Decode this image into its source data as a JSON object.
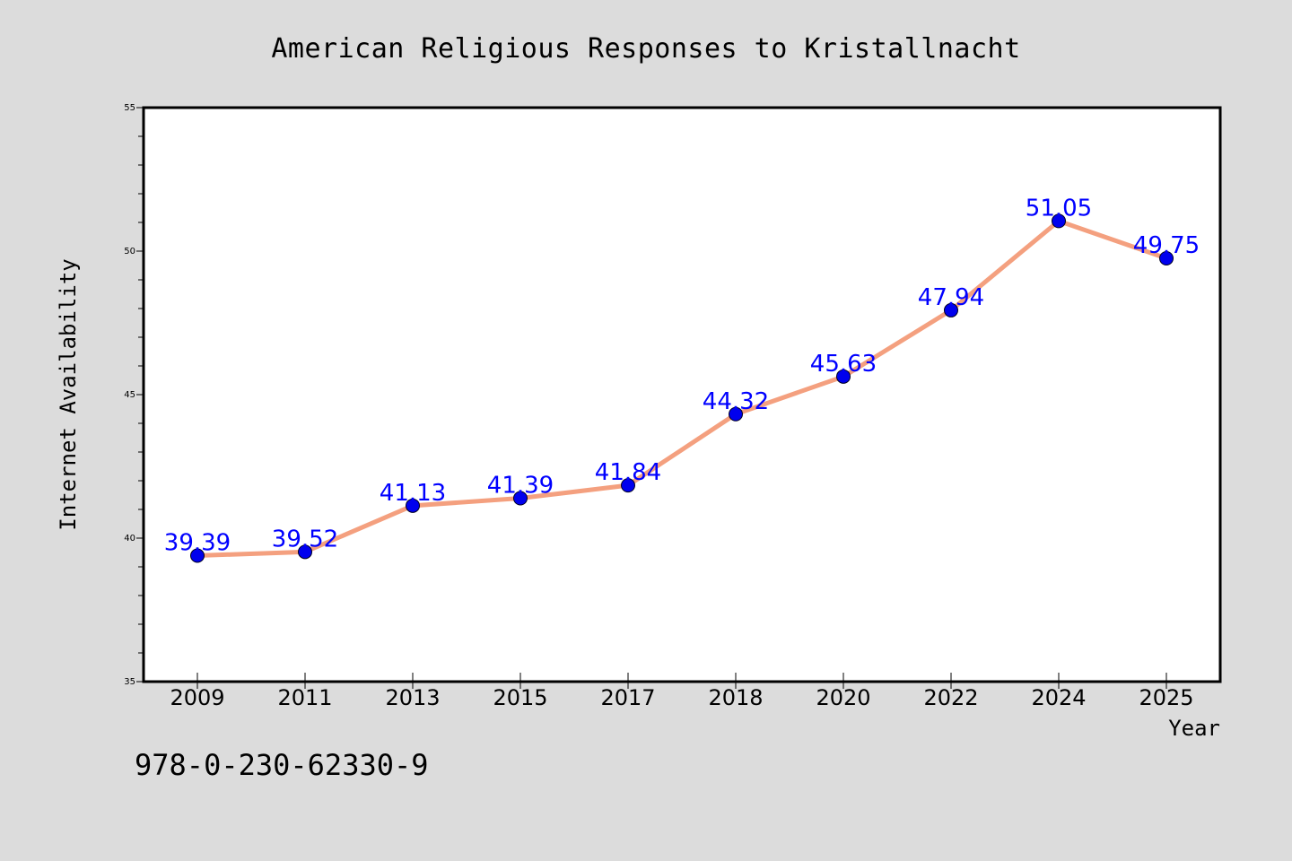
{
  "chart_data": {
    "type": "line",
    "title": "American Religious Responses to Kristallnacht",
    "xlabel": "Year",
    "ylabel": "Internet Availability",
    "categories": [
      "2009",
      "2011",
      "2013",
      "2015",
      "2017",
      "2018",
      "2020",
      "2022",
      "2024",
      "2025"
    ],
    "series": [
      {
        "values": [
          39.39,
          39.52,
          41.13,
          41.39,
          41.84,
          44.32,
          45.63,
          47.94,
          51.05,
          49.75
        ],
        "labels": [
          "39.39",
          "39.52",
          "41.13",
          "41.39",
          "41.84",
          "44.32",
          "45.63",
          "47.94",
          "51.05",
          "49.75"
        ]
      }
    ],
    "ylim": [
      35,
      55
    ],
    "yticks": [
      "35",
      "40",
      "45",
      "50",
      "55"
    ],
    "grid": false,
    "line_color": "#f4a07f",
    "marker_color": "#0000ee",
    "label_color": "#0000ff"
  },
  "footer_text": "978-0-230-62330-9"
}
